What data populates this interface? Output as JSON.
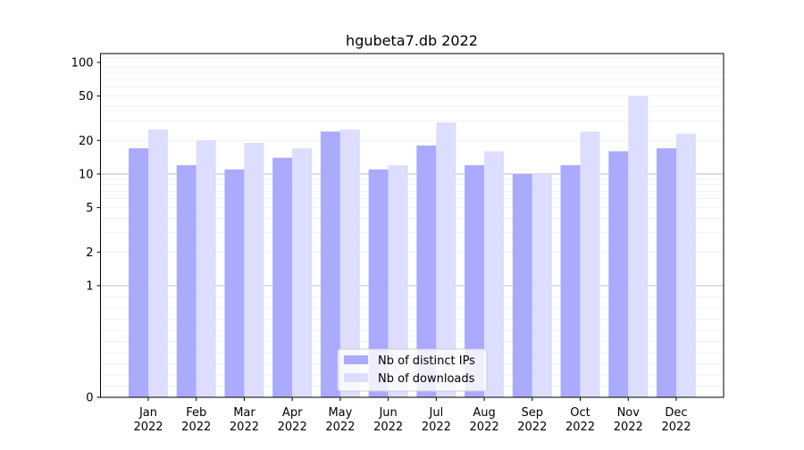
{
  "chart_data": {
    "type": "bar",
    "title": "hgubeta7.db 2022",
    "xlabel": "",
    "ylabel": "",
    "yscale": "symlog",
    "ylim": [
      0,
      120
    ],
    "grid": true,
    "legend_position": "bottom-center",
    "categories": [
      {
        "month": "Jan",
        "year": "2022"
      },
      {
        "month": "Feb",
        "year": "2022"
      },
      {
        "month": "Mar",
        "year": "2022"
      },
      {
        "month": "Apr",
        "year": "2022"
      },
      {
        "month": "May",
        "year": "2022"
      },
      {
        "month": "Jun",
        "year": "2022"
      },
      {
        "month": "Jul",
        "year": "2022"
      },
      {
        "month": "Aug",
        "year": "2022"
      },
      {
        "month": "Sep",
        "year": "2022"
      },
      {
        "month": "Oct",
        "year": "2022"
      },
      {
        "month": "Nov",
        "year": "2022"
      },
      {
        "month": "Dec",
        "year": "2022"
      }
    ],
    "yticks": [
      0,
      1,
      2,
      5,
      10,
      20,
      50,
      100
    ],
    "series": [
      {
        "name": "Nb of distinct IPs",
        "color": "#aaaaff",
        "values": [
          17,
          12,
          11,
          14,
          24,
          11,
          18,
          12,
          10,
          12,
          16,
          17
        ]
      },
      {
        "name": "Nb of downloads",
        "color": "#ddddff",
        "values": [
          25,
          20,
          19,
          17,
          25,
          12,
          29,
          16,
          10,
          24,
          50,
          23
        ]
      }
    ]
  }
}
